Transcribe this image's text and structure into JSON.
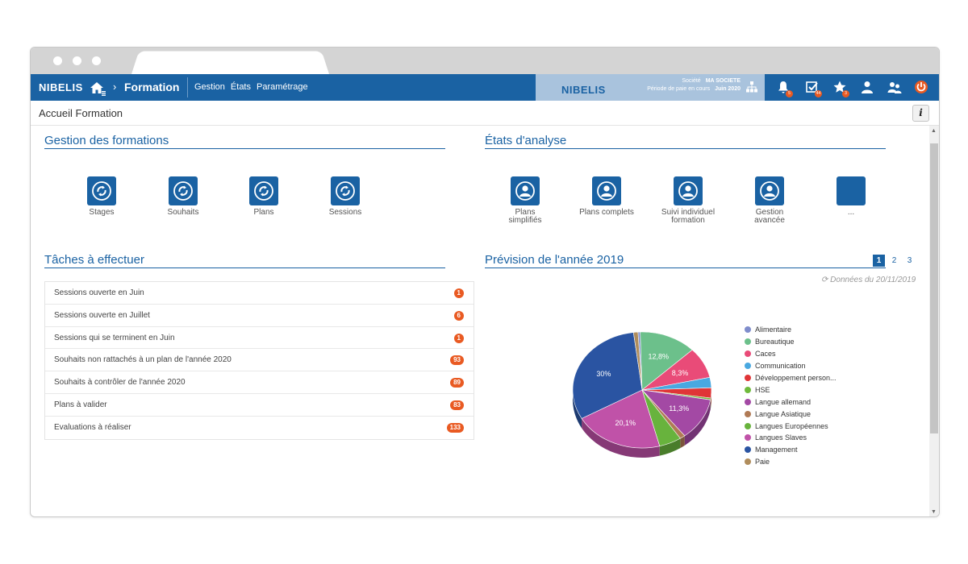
{
  "app": {
    "logo": "NIBELIS",
    "breadcrumb_current": "Formation",
    "nav": [
      "Gestion",
      "États",
      "Paramétrage"
    ]
  },
  "company": {
    "logo": "NIBELIS",
    "label_company": "Société",
    "company_name": "MA SOCIETE",
    "label_period": "Période de paie en cours",
    "period": "Juin 2020"
  },
  "top_icons": [
    {
      "name": "bell-icon",
      "badge": "5"
    },
    {
      "name": "checklist-icon",
      "badge": "44"
    },
    {
      "name": "star-icon",
      "badge": "3"
    },
    {
      "name": "user-icon",
      "badge": ""
    },
    {
      "name": "users-icon",
      "badge": ""
    },
    {
      "name": "power-icon",
      "badge": ""
    }
  ],
  "page": {
    "title": "Accueil Formation",
    "info_label": "i"
  },
  "sections": {
    "gestion": "Gestion des formations",
    "etats": "États d'analyse",
    "taches": "Tâches à effectuer",
    "prevision": "Prévision de l'année 2019"
  },
  "gestion_tiles": [
    "Stages",
    "Souhaits",
    "Plans",
    "Sessions"
  ],
  "etats_tiles": [
    [
      "Plans",
      "simplifiés"
    ],
    [
      "Plans complets",
      ""
    ],
    [
      "Suivi individuel",
      "formation"
    ],
    [
      "Gestion",
      "avancée"
    ],
    [
      "...",
      ""
    ]
  ],
  "tasks": [
    {
      "label": "Sessions ouverte en Juin",
      "count": "1"
    },
    {
      "label": "Sessions ouverte en Juillet",
      "count": "6"
    },
    {
      "label": "Sessions qui se terminent en Juin",
      "count": "1"
    },
    {
      "label": "Souhaits non rattachés à un plan de l'année 2020",
      "count": "93"
    },
    {
      "label": "Souhaits à contrôler de l'année 2020",
      "count": "89"
    },
    {
      "label": "Plans à valider",
      "count": "83"
    },
    {
      "label": "Evaluations à réaliser",
      "count": "133"
    }
  ],
  "pager": [
    "1",
    "2",
    "3"
  ],
  "data_date": "Données du 20/11/2019",
  "chart_data": {
    "type": "pie",
    "title": "Prévision de l'année 2019",
    "series": [
      {
        "name": "Alimentaire",
        "value": 0.5,
        "color": "#7f8dcc"
      },
      {
        "name": "Bureautique",
        "value": 12.8,
        "color": "#6cc08b",
        "label": "12,8%"
      },
      {
        "name": "Caces",
        "value": 8.3,
        "color": "#e94b78",
        "label": "8,3%"
      },
      {
        "name": "Communication",
        "value": 2.8,
        "color": "#49a8e0"
      },
      {
        "name": "Développement person...",
        "value": 2.7,
        "color": "#e03537"
      },
      {
        "name": "HSE",
        "value": 0.5,
        "color": "#6fba3c"
      },
      {
        "name": "Langue allemand",
        "value": 11.3,
        "color": "#a349a4",
        "label": "11,3%"
      },
      {
        "name": "Langue Asiatique",
        "value": 1.2,
        "color": "#b07a55"
      },
      {
        "name": "Langues Européennes",
        "value": 5.0,
        "color": "#68b33d"
      },
      {
        "name": "Langues Slaves",
        "value": 20.1,
        "color": "#c052a8",
        "label": "20,1%"
      },
      {
        "name": "Management",
        "value": 30.0,
        "color": "#2a54a2",
        "label": "30%"
      },
      {
        "name": "Paie",
        "value": 1.0,
        "color": "#b08d5c"
      }
    ]
  }
}
